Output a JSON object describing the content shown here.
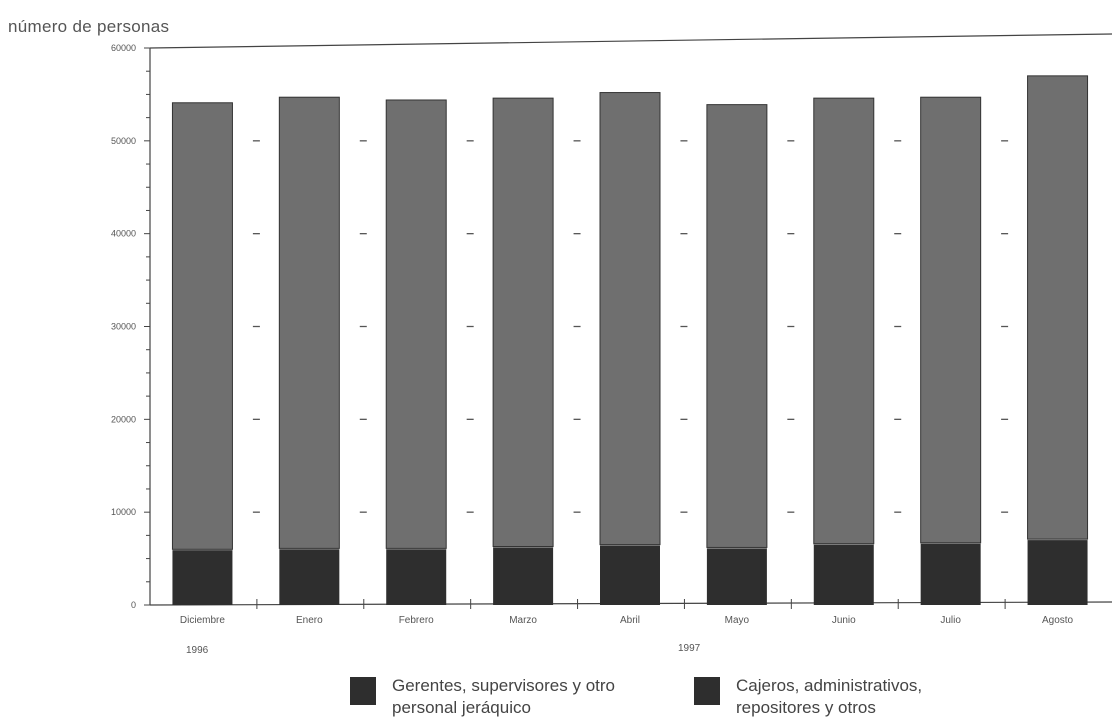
{
  "chart_data": {
    "type": "bar",
    "stacked": true,
    "ylabel": "número  de personas",
    "categories": [
      "Diciembre",
      "Enero",
      "Febrero",
      "Marzo",
      "Abril",
      "Mayo",
      "Junio",
      "Julio",
      "Agosto"
    ],
    "year_labels": [
      "1996",
      "1997"
    ],
    "yticks": [
      "0",
      "10000",
      "20000",
      "30000",
      "40000",
      "50000",
      "60000"
    ],
    "ylim": [
      0,
      60000
    ],
    "series": [
      {
        "name": "Gerentes, supervisores y otro personal jeráquico",
        "values": [
          6000,
          6100,
          6100,
          6300,
          6500,
          6200,
          6600,
          6700,
          7100
        ]
      },
      {
        "name": "Cajeros, administrativos, repositores y otros",
        "values": [
          48100,
          48600,
          48300,
          48300,
          48700,
          47700,
          48000,
          48000,
          49900
        ]
      }
    ],
    "colors": {
      "managers": "#2e2e2e",
      "cashiers": "#6f6f6f"
    },
    "legend_position": "bottom",
    "grid": false
  }
}
